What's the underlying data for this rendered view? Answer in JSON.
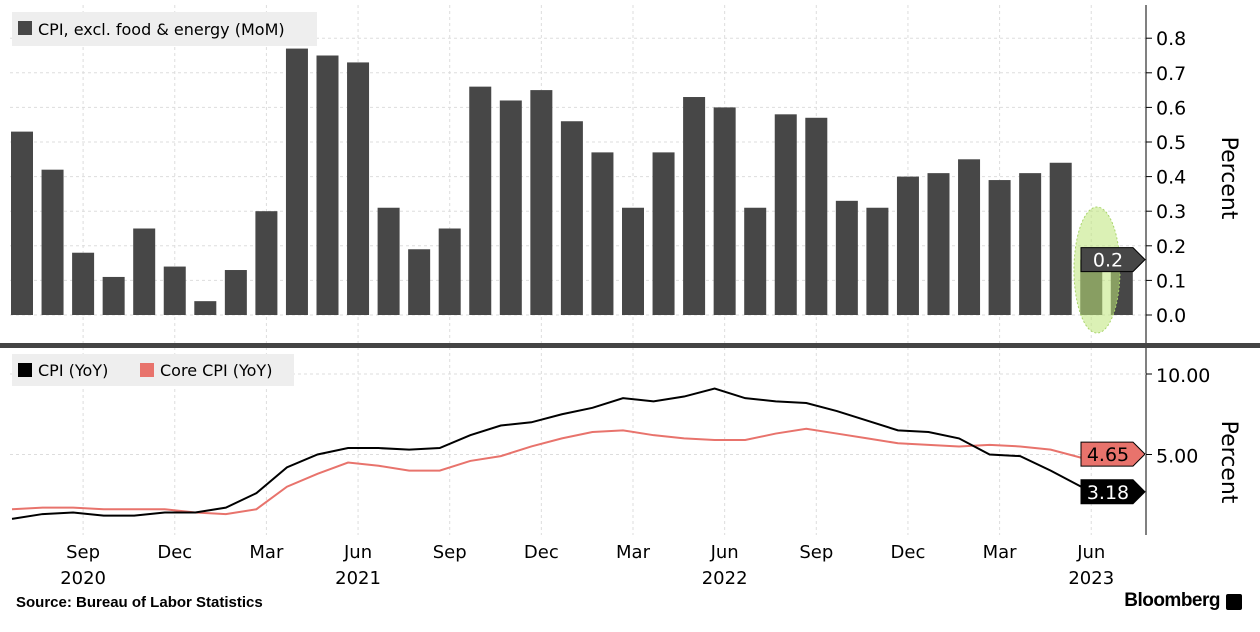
{
  "chart_data": [
    {
      "type": "bar",
      "title": "",
      "legend": [
        "CPI, excl. food & energy (MoM)"
      ],
      "legend_placement": "top-left",
      "ylabel": "Percent",
      "ylim": [
        -0.05,
        0.85
      ],
      "yticks": [
        "0.0",
        "0.1",
        "0.2",
        "0.3",
        "0.4",
        "0.5",
        "0.6",
        "0.7",
        "0.8"
      ],
      "categories": [
        "Jul 2020",
        "Aug 2020",
        "Sep 2020",
        "Oct 2020",
        "Nov 2020",
        "Dec 2020",
        "Jan 2021",
        "Feb 2021",
        "Mar 2021",
        "Apr 2021",
        "May 2021",
        "Jun 2021",
        "Jul 2021",
        "Aug 2021",
        "Sep 2021",
        "Oct 2021",
        "Nov 2021",
        "Dec 2021",
        "Jan 2022",
        "Feb 2022",
        "Mar 2022",
        "Apr 2022",
        "May 2022",
        "Jun 2022",
        "Jul 2022",
        "Aug 2022",
        "Sep 2022",
        "Oct 2022",
        "Nov 2022",
        "Dec 2022",
        "Jan 2023",
        "Feb 2023",
        "Mar 2023",
        "Apr 2023",
        "May 2023",
        "Jun 2023",
        "Jul 2023"
      ],
      "values": [
        0.53,
        0.42,
        0.18,
        0.11,
        0.25,
        0.14,
        0.04,
        0.13,
        0.3,
        0.77,
        0.75,
        0.73,
        0.31,
        0.19,
        0.25,
        0.66,
        0.62,
        0.65,
        0.56,
        0.47,
        0.31,
        0.47,
        0.63,
        0.6,
        0.31,
        0.58,
        0.57,
        0.33,
        0.31,
        0.4,
        0.41,
        0.45,
        0.39,
        0.41,
        0.44,
        0.16,
        0.16
      ],
      "last_value_label": "0.2",
      "highlight": "last two bars circled",
      "color": "#474747"
    },
    {
      "type": "line",
      "legend": [
        "CPI (YoY)",
        "Core CPI (YoY)"
      ],
      "legend_placement": "top-left",
      "ylabel": "Percent",
      "ylim": [
        0,
        10.5
      ],
      "yticks": [
        "5.00",
        "10.00"
      ],
      "categories": [
        "Jul 2020",
        "Aug 2020",
        "Sep 2020",
        "Oct 2020",
        "Nov 2020",
        "Dec 2020",
        "Jan 2021",
        "Feb 2021",
        "Mar 2021",
        "Apr 2021",
        "May 2021",
        "Jun 2021",
        "Jul 2021",
        "Aug 2021",
        "Sep 2021",
        "Oct 2021",
        "Nov 2021",
        "Dec 2021",
        "Jan 2022",
        "Feb 2022",
        "Mar 2022",
        "Apr 2022",
        "May 2022",
        "Jun 2022",
        "Jul 2022",
        "Aug 2022",
        "Sep 2022",
        "Oct 2022",
        "Nov 2022",
        "Dec 2022",
        "Jan 2023",
        "Feb 2023",
        "Mar 2023",
        "Apr 2023",
        "May 2023",
        "Jun 2023",
        "Jul 2023"
      ],
      "series": [
        {
          "name": "CPI (YoY)",
          "color": "#000000",
          "last_label": "3.18",
          "values": [
            1.0,
            1.3,
            1.4,
            1.2,
            1.2,
            1.4,
            1.4,
            1.7,
            2.6,
            4.2,
            5.0,
            5.4,
            5.4,
            5.3,
            5.4,
            6.2,
            6.8,
            7.0,
            7.5,
            7.9,
            8.5,
            8.3,
            8.6,
            9.1,
            8.5,
            8.3,
            8.2,
            7.7,
            7.1,
            6.5,
            6.4,
            6.0,
            5.0,
            4.9,
            4.0,
            3.0,
            3.18
          ]
        },
        {
          "name": "Core CPI (YoY)",
          "color": "#e8736c",
          "last_label": "4.65",
          "values": [
            1.6,
            1.7,
            1.7,
            1.6,
            1.6,
            1.6,
            1.4,
            1.3,
            1.6,
            3.0,
            3.8,
            4.5,
            4.3,
            4.0,
            4.0,
            4.6,
            4.9,
            5.5,
            6.0,
            6.4,
            6.5,
            6.2,
            6.0,
            5.9,
            5.9,
            6.3,
            6.6,
            6.3,
            6.0,
            5.7,
            5.6,
            5.5,
            5.6,
            5.5,
            5.3,
            4.8,
            4.65
          ]
        }
      ]
    },
    {
      "type": "axis",
      "xticks": [
        {
          "m": "Sep",
          "y": "2020",
          "i": 2
        },
        {
          "m": "Dec",
          "y": "",
          "i": 5
        },
        {
          "m": "Mar",
          "y": "",
          "i": 8
        },
        {
          "m": "Jun",
          "y": "2021",
          "i": 11
        },
        {
          "m": "Sep",
          "y": "",
          "i": 14
        },
        {
          "m": "Dec",
          "y": "",
          "i": 17
        },
        {
          "m": "Mar",
          "y": "",
          "i": 20
        },
        {
          "m": "Jun",
          "y": "2022",
          "i": 23
        },
        {
          "m": "Sep",
          "y": "",
          "i": 26
        },
        {
          "m": "Dec",
          "y": "",
          "i": 29
        },
        {
          "m": "Mar",
          "y": "",
          "i": 32
        },
        {
          "m": "Jun",
          "y": "2023",
          "i": 35
        }
      ]
    }
  ],
  "footer": {
    "source": "Source: Bureau of Labor Statistics",
    "brand": "Bloomberg"
  }
}
